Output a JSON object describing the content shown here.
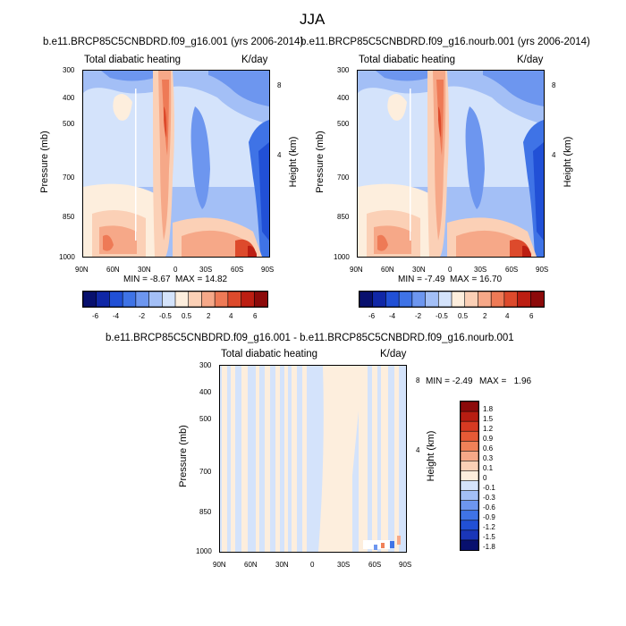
{
  "figure": {
    "title": "JJA"
  },
  "chart_data": [
    {
      "type": "heatmap",
      "title": "b.e11.BRCP85C5CNBDRD.f09_g16.001 (yrs 2006-2014)",
      "field_label": "Total diabatic heating",
      "units": "K/day",
      "xlabel": "",
      "ylabel": "Pressure (mb)",
      "ylabel_right": "Height (km)",
      "x_ticks": [
        "90N",
        "60N",
        "30N",
        "0",
        "30S",
        "60S",
        "90S"
      ],
      "y_ticks": [
        "300",
        "400",
        "500",
        "700",
        "850",
        "1000"
      ],
      "y_right_ticks": [
        "8",
        "4"
      ],
      "xlim": [
        90,
        -90
      ],
      "ylim": [
        1000,
        300
      ],
      "min_text": "MIN = -8.67",
      "max_text": "MAX = 14.82",
      "min": -8.67,
      "max": 14.82,
      "colorbar_labels": [
        "-6",
        "-4",
        "-2",
        "-0.5",
        "0.5",
        "2",
        "4",
        "6"
      ]
    },
    {
      "type": "heatmap",
      "title": "b.e11.BRCP85C5CNBDRD.f09_g16.nourb.001 (yrs 2006-2014)",
      "field_label": "Total diabatic heating",
      "units": "K/day",
      "xlabel": "",
      "ylabel": "Pressure (mb)",
      "ylabel_right": "Height (km)",
      "x_ticks": [
        "90N",
        "60N",
        "30N",
        "0",
        "30S",
        "60S",
        "90S"
      ],
      "y_ticks": [
        "300",
        "400",
        "500",
        "700",
        "850",
        "1000"
      ],
      "y_right_ticks": [
        "8",
        "4"
      ],
      "xlim": [
        90,
        -90
      ],
      "ylim": [
        1000,
        300
      ],
      "min_text": "MIN = -7.49",
      "max_text": "MAX = 16.70",
      "min": -7.49,
      "max": 16.7,
      "colorbar_labels": [
        "-6",
        "-4",
        "-2",
        "-0.5",
        "0.5",
        "2",
        "4",
        "6"
      ]
    },
    {
      "type": "heatmap",
      "title": "b.e11.BRCP85C5CNBDRD.f09_g16.001 - b.e11.BRCP85C5CNBDRD.f09_g16.nourb.001",
      "field_label": "Total diabatic heating",
      "units": "K/day",
      "xlabel": "",
      "ylabel": "Pressure (mb)",
      "ylabel_right": "Height (km)",
      "x_ticks": [
        "90N",
        "60N",
        "30N",
        "0",
        "30S",
        "60S",
        "90S"
      ],
      "y_ticks": [
        "300",
        "400",
        "500",
        "700",
        "850",
        "1000"
      ],
      "y_right_ticks": [
        "8",
        "4"
      ],
      "xlim": [
        90,
        -90
      ],
      "ylim": [
        1000,
        300
      ],
      "min_text": "MIN = -2.49",
      "max_text": "MAX =   1.96",
      "min": -2.49,
      "max": 1.96,
      "colorbar_labels": [
        "1.8",
        "1.5",
        "1.2",
        "0.9",
        "0.6",
        "0.3",
        "0.1",
        "0",
        "-0.1",
        "-0.3",
        "-0.6",
        "-0.9",
        "-1.2",
        "-1.5",
        "-1.8"
      ]
    }
  ],
  "colors": {
    "abs_scale": [
      "#08106e",
      "#1027a6",
      "#2150d6",
      "#3f73e6",
      "#6d96ef",
      "#a3bff6",
      "#d4e3fb",
      "#fdeedd",
      "#fbd0b6",
      "#f6a888",
      "#ee7a56",
      "#dd4a2c",
      "#bc1e12",
      "#8c0a0a"
    ],
    "diff_scale": [
      "#8c0a0a",
      "#b71d12",
      "#d63a22",
      "#e65a36",
      "#f08158",
      "#f6a888",
      "#fbd0b6",
      "#fdeedd",
      "#d4e3fb",
      "#a3bff6",
      "#6d96ef",
      "#3f73e6",
      "#2150d6",
      "#1a36b8",
      "#08106e"
    ]
  }
}
